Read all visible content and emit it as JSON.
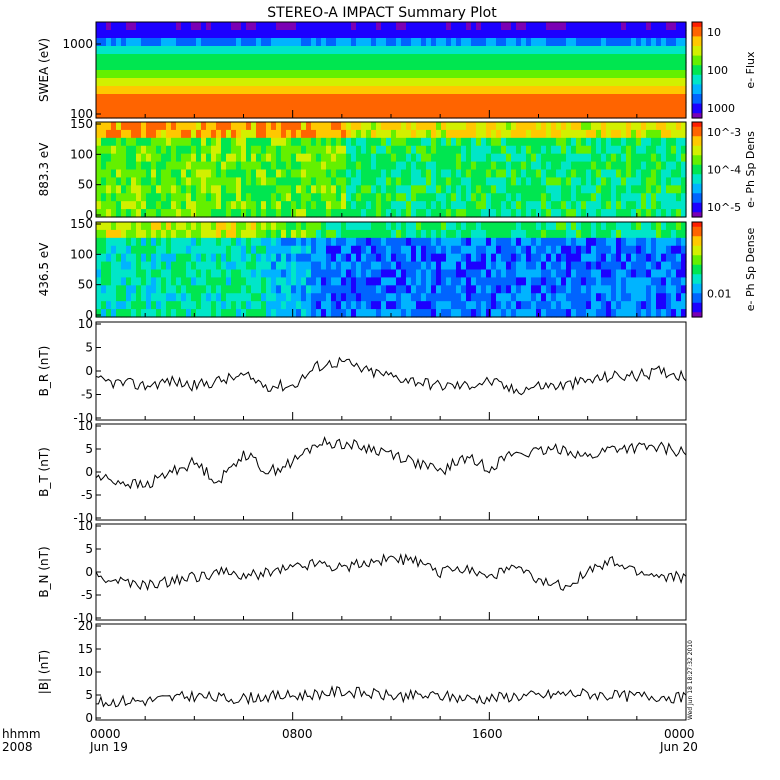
{
  "title": "STEREO-A IMPACT Summary Plot",
  "footer": {
    "time_label": "hhmm",
    "year": "2008",
    "ticks": [
      "0000",
      "0800",
      "1600",
      "0000"
    ],
    "dates": [
      "Jun 19",
      "Jun 20"
    ]
  },
  "timestamp": "Wed Jun 18 18:27:32 2010",
  "colors": {
    "colormap": [
      "#7a00b4",
      "#1c00ff",
      "#0064ff",
      "#00b4ff",
      "#00e6c8",
      "#00e650",
      "#64f000",
      "#d2f000",
      "#ffc800",
      "#ff6400",
      "#ff1e00"
    ],
    "line": "#000000",
    "axis": "#000000"
  },
  "chart_data": [
    {
      "type": "heatmap",
      "name": "swea",
      "ylabel": "SWEA (eV)",
      "yscale": "log",
      "ylim": [
        100,
        2000
      ],
      "yticks": [
        "100",
        "1000"
      ],
      "colorbar_label": "e- Flux",
      "colorbar_scale": "log",
      "colorbar_ticks": [
        "10",
        "100",
        "1000"
      ],
      "rows_low_to_high": [
        0.92,
        0.88,
        0.8,
        0.72,
        0.62,
        0.5,
        0.38,
        0.25,
        0.12,
        0.06
      ]
    },
    {
      "type": "heatmap",
      "name": "pad_883",
      "ylabel": "883.3 eV",
      "ylim": [
        0,
        180
      ],
      "yticks": [
        "0",
        "50",
        "100",
        "150"
      ],
      "colorbar_label": "e- Ph Sp Dens",
      "colorbar_scale": "log",
      "colorbar_ticks": [
        "10^-3",
        "10^-4",
        "10^-5"
      ],
      "segments_level": [
        [
          0,
          0.42,
          0.58
        ],
        [
          0.42,
          1.0,
          0.48
        ]
      ]
    },
    {
      "type": "heatmap",
      "name": "pad_436",
      "ylabel": "436.5 eV",
      "ylim": [
        0,
        180
      ],
      "yticks": [
        "0",
        "50",
        "100",
        "150"
      ],
      "colorbar_label": "e- Ph Sp Dense",
      "colorbar_scale": "log",
      "colorbar_ticks": [
        "0.01"
      ],
      "segments_level": [
        [
          0,
          0.28,
          0.42
        ],
        [
          0.28,
          0.36,
          0.32
        ],
        [
          0.36,
          1.0,
          0.22
        ]
      ]
    },
    {
      "type": "line",
      "name": "br",
      "ylabel": "B_R (nT)",
      "ylim": [
        -10,
        10
      ],
      "yticks": [
        "-10",
        "-5",
        "0",
        "5",
        "10"
      ],
      "x_hours": [
        0,
        1,
        2,
        3,
        4,
        5,
        6,
        7,
        8,
        9,
        10,
        11,
        12,
        13,
        14,
        15,
        16,
        17,
        18,
        19,
        20,
        21,
        22,
        23,
        24
      ],
      "values": [
        -2,
        -2.5,
        -3,
        -2,
        -3,
        -2,
        -1,
        -3,
        -3,
        1,
        2,
        0,
        -1,
        -2,
        -3,
        -3,
        -2,
        -4,
        -3,
        -3,
        -2,
        -1,
        -1,
        0,
        -1
      ]
    },
    {
      "type": "line",
      "name": "bt",
      "ylabel": "B_T (nT)",
      "ylim": [
        -10,
        10
      ],
      "yticks": [
        "-10",
        "-5",
        "0",
        "5",
        "10"
      ],
      "x_hours": [
        0,
        1,
        2,
        3,
        4,
        5,
        6,
        7,
        8,
        9,
        10,
        11,
        12,
        13,
        14,
        15,
        16,
        17,
        18,
        19,
        20,
        21,
        22,
        23,
        24
      ],
      "values": [
        -1,
        -2,
        -3,
        0,
        2,
        -2,
        4,
        0,
        2,
        6,
        6,
        5,
        4,
        2,
        0,
        3,
        1,
        4,
        4,
        5,
        3,
        5,
        5,
        5,
        4
      ]
    },
    {
      "type": "line",
      "name": "bn",
      "ylabel": "B_N (nT)",
      "ylim": [
        -10,
        10
      ],
      "yticks": [
        "-10",
        "-5",
        "0",
        "5",
        "10"
      ],
      "x_hours": [
        0,
        1,
        2,
        3,
        4,
        5,
        6,
        7,
        8,
        9,
        10,
        11,
        12,
        13,
        14,
        15,
        16,
        17,
        18,
        19,
        20,
        21,
        22,
        23,
        24
      ],
      "values": [
        -1,
        -2,
        -3,
        -2,
        -1,
        0,
        -1,
        0,
        1,
        2,
        1,
        2,
        3,
        2,
        0,
        1,
        -1,
        1,
        -2,
        -3,
        0,
        2,
        0,
        -1,
        -1
      ]
    },
    {
      "type": "line",
      "name": "bmag",
      "ylabel": "|B| (nT)",
      "ylim": [
        0,
        20
      ],
      "yticks": [
        "0",
        "5",
        "10",
        "15",
        "20"
      ],
      "x_hours": [
        0,
        1,
        2,
        3,
        4,
        5,
        6,
        7,
        8,
        9,
        10,
        11,
        12,
        13,
        14,
        15,
        16,
        17,
        18,
        19,
        20,
        21,
        22,
        23,
        24
      ],
      "values": [
        3.5,
        4,
        4,
        4.5,
        5,
        4.5,
        4.5,
        5,
        5,
        5.5,
        6,
        5.5,
        5,
        5,
        5,
        4.5,
        4.5,
        5,
        5,
        5.5,
        5.5,
        5,
        5,
        5,
        4.5
      ]
    }
  ]
}
